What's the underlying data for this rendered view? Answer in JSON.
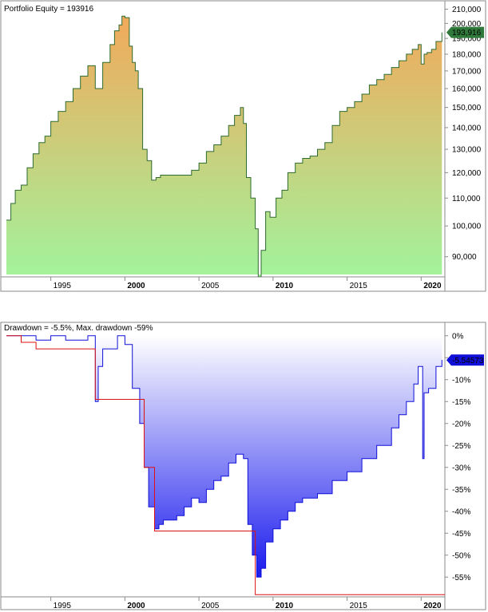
{
  "chart_data": [
    {
      "type": "area",
      "title": "Portfolio Equity = 193916",
      "y_tick_labels": [
        "90,000",
        "100,000",
        "110,000",
        "120,000",
        "130,000",
        "140,000",
        "150,000",
        "160,000",
        "170,000",
        "180,000",
        "190,000",
        "200,000",
        "210,000"
      ],
      "y_ticks": [
        90000,
        100000,
        110000,
        120000,
        130000,
        140000,
        150000,
        160000,
        170000,
        180000,
        190000,
        200000,
        210000
      ],
      "ylim": [
        84000,
        212000
      ],
      "y_scale": "log",
      "x_tick_labels": [
        "1995",
        "2000",
        "2005",
        "2010",
        "2015",
        "2020"
      ],
      "x_ticks": [
        1995,
        2000,
        2005,
        2010,
        2015,
        2020
      ],
      "x_bold_labels": [
        "2000",
        "2010",
        "2020"
      ],
      "xlim": [
        1992.0,
        2021.6
      ],
      "current_value_label": "193,916",
      "current_value": 193916,
      "fill_top_color": "#f2a95b",
      "fill_bottom_color": "#a2f39c",
      "line_color": "#2e6b2e",
      "marker_color": "#2f7a3a",
      "series": [
        {
          "x": [
            1992.0,
            1992.3,
            1992.6,
            1993.0,
            1993.4,
            1993.8,
            1994.2,
            1994.6,
            1995.0,
            1995.5,
            1996.0,
            1996.5,
            1997.0,
            1997.5,
            1998.0,
            1998.5,
            1999.0,
            1999.3,
            1999.6,
            1999.8,
            2000.0,
            2000.3,
            2000.5,
            2000.7,
            2000.9,
            2001.2,
            2001.5,
            2001.8,
            2002.1,
            2002.4,
            2002.7,
            2003.0,
            2003.5,
            2004.0,
            2004.5,
            2005.0,
            2005.5,
            2006.0,
            2006.5,
            2007.0,
            2007.4,
            2007.8,
            2008.0,
            2008.2,
            2008.5,
            2008.8,
            2009.0,
            2009.2,
            2009.5,
            2009.8,
            2010.2,
            2010.6,
            2011.0,
            2011.5,
            2012.0,
            2012.5,
            2013.0,
            2013.5,
            2014.0,
            2014.5,
            2015.0,
            2015.5,
            2016.0,
            2016.5,
            2017.0,
            2017.5,
            2018.0,
            2018.5,
            2019.0,
            2019.4,
            2019.8,
            2020.0,
            2020.2,
            2020.4,
            2020.7,
            2021.0,
            2021.4
          ],
          "y": [
            102000,
            108000,
            113000,
            115000,
            122000,
            128000,
            133000,
            136000,
            143000,
            148000,
            153000,
            160000,
            167000,
            173000,
            160000,
            175000,
            186000,
            195000,
            199000,
            205000,
            204000,
            185000,
            175000,
            170000,
            160000,
            130000,
            125000,
            117000,
            118000,
            119000,
            119000,
            119000,
            119000,
            119000,
            121000,
            124000,
            129000,
            132000,
            136000,
            141000,
            146000,
            150000,
            142000,
            118000,
            110000,
            99000,
            84000,
            92000,
            105000,
            103000,
            110000,
            113000,
            120000,
            124000,
            126000,
            127000,
            130000,
            133000,
            141000,
            148000,
            150000,
            153000,
            157000,
            162000,
            165000,
            168000,
            172000,
            176000,
            180000,
            183000,
            186000,
            174000,
            180000,
            181000,
            183000,
            188000,
            193916
          ]
        }
      ]
    },
    {
      "type": "area",
      "title": "Drawdown = -5.5%, Max. drawdown -59%",
      "y_tick_labels": [
        "0%",
        "-5%",
        "-10%",
        "-15%",
        "-20%",
        "-25%",
        "-30%",
        "-35%",
        "-40%",
        "-45%",
        "-50%",
        "-55%"
      ],
      "y_ticks": [
        0,
        -5,
        -10,
        -15,
        -20,
        -25,
        -30,
        -35,
        -40,
        -45,
        -50,
        -55
      ],
      "ylim": [
        -59.5,
        0.5
      ],
      "x_tick_labels": [
        "1995",
        "2000",
        "2005",
        "2010",
        "2015",
        "2020"
      ],
      "x_ticks": [
        1995,
        2000,
        2005,
        2010,
        2015,
        2020
      ],
      "x_bold_labels": [
        "2000",
        "2010",
        "2020"
      ],
      "xlim": [
        1992.0,
        2021.6
      ],
      "current_value_label": "-5.54573",
      "current_value": -5.54573,
      "fill_top_color": "#ffffff",
      "fill_bottom_color": "#1a1aee",
      "line_color": "#1010d8",
      "max_line_color": "#dd1111",
      "marker_color": "#1010d8",
      "series": [
        {
          "name": "Drawdown",
          "x": [
            1992.0,
            1993.0,
            1994.0,
            1995.0,
            1996.0,
            1997.0,
            1997.5,
            1998.0,
            1998.2,
            1998.5,
            1999.0,
            1999.5,
            2000.0,
            2000.5,
            2001.0,
            2001.3,
            2001.6,
            2002.0,
            2002.3,
            2002.6,
            2003.0,
            2003.5,
            2004.0,
            2004.5,
            2005.0,
            2005.5,
            2006.0,
            2006.5,
            2007.0,
            2007.5,
            2008.0,
            2008.3,
            2008.6,
            2008.9,
            2009.2,
            2009.5,
            2010.0,
            2010.5,
            2011.0,
            2011.5,
            2012.0,
            2013.0,
            2014.0,
            2015.0,
            2016.0,
            2017.0,
            2018.0,
            2018.5,
            2019.0,
            2019.5,
            2019.8,
            2020.1,
            2020.2,
            2020.5,
            2021.0,
            2021.4
          ],
          "y": [
            0,
            0,
            -1,
            0,
            -1,
            -1,
            0,
            -15,
            -7,
            -3,
            -3,
            0,
            -2,
            -12,
            -20,
            -30,
            -39,
            -44,
            -43,
            -42,
            -42,
            -41,
            -39,
            -37,
            -38,
            -35,
            -33,
            -32,
            -29,
            -27,
            -28,
            -43,
            -50,
            -55,
            -53,
            -47,
            -44,
            -42,
            -40,
            -38,
            -37,
            -36,
            -33,
            -31,
            -28,
            -25,
            -21,
            -18,
            -15,
            -11,
            -7,
            -28,
            -13,
            -12,
            -7,
            -5.5
          ]
        },
        {
          "name": "Max. drawdown",
          "x": [
            1992.0,
            1993.0,
            1994.0,
            1997.9,
            1998.0,
            2000.8,
            2001.3,
            2002.0,
            2008.3,
            2008.8,
            2021.6
          ],
          "y": [
            0,
            -1.5,
            -3,
            -3,
            -14.5,
            -14.5,
            -30,
            -44.5,
            -44.5,
            -59,
            -59
          ]
        }
      ]
    }
  ]
}
